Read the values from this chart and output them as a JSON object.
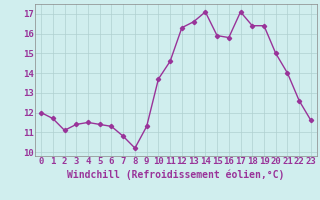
{
  "x": [
    0,
    1,
    2,
    3,
    4,
    5,
    6,
    7,
    8,
    9,
    10,
    11,
    12,
    13,
    14,
    15,
    16,
    17,
    18,
    19,
    20,
    21,
    22,
    23
  ],
  "y": [
    12.0,
    11.7,
    11.1,
    11.4,
    11.5,
    11.4,
    11.3,
    10.8,
    10.2,
    11.3,
    13.7,
    14.6,
    16.3,
    16.6,
    17.1,
    15.9,
    15.8,
    17.1,
    16.4,
    16.4,
    15.0,
    14.0,
    12.6,
    11.6
  ],
  "line_color": "#993399",
  "marker": "D",
  "marker_size": 2.2,
  "bg_color": "#d0eeee",
  "grid_color": "#b0d0d0",
  "xlabel": "Windchill (Refroidissement éolien,°C)",
  "xlabel_color": "#993399",
  "tick_color": "#993399",
  "ylim": [
    9.8,
    17.5
  ],
  "yticks": [
    10,
    11,
    12,
    13,
    14,
    15,
    16,
    17
  ],
  "xlim": [
    -0.5,
    23.5
  ],
  "xticks": [
    0,
    1,
    2,
    3,
    4,
    5,
    6,
    7,
    8,
    9,
    10,
    11,
    12,
    13,
    14,
    15,
    16,
    17,
    18,
    19,
    20,
    21,
    22,
    23
  ],
  "linewidth": 1.0,
  "font_size": 6.5,
  "xlabel_fontsize": 7.0
}
